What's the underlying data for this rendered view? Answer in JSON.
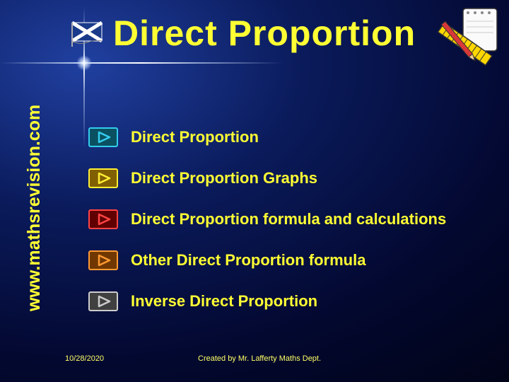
{
  "title": "Direct Proportion",
  "sidebar_url": "www.mathsrevision.com",
  "bullets": [
    {
      "label": "Direct Proportion",
      "stroke": "#33ccee",
      "fill": "#0a5060"
    },
    {
      "label": "Direct Proportion Graphs",
      "stroke": "#ffee33",
      "fill": "#806000"
    },
    {
      "label": "Direct Proportion formula and calculations",
      "stroke": "#ff4444",
      "fill": "#600000"
    },
    {
      "label": "Other Direct Proportion formula",
      "stroke": "#ff9933",
      "fill": "#703800"
    },
    {
      "label": "Inverse Direct Proportion",
      "stroke": "#cccccc",
      "fill": "#404040"
    }
  ],
  "footer": {
    "date": "10/28/2020",
    "credit": "Created by Mr. Lafferty Maths Dept."
  },
  "colors": {
    "text_primary": "#ffff33",
    "bg_gradient_inner": "#2040a0",
    "bg_gradient_outer": "#010418"
  }
}
